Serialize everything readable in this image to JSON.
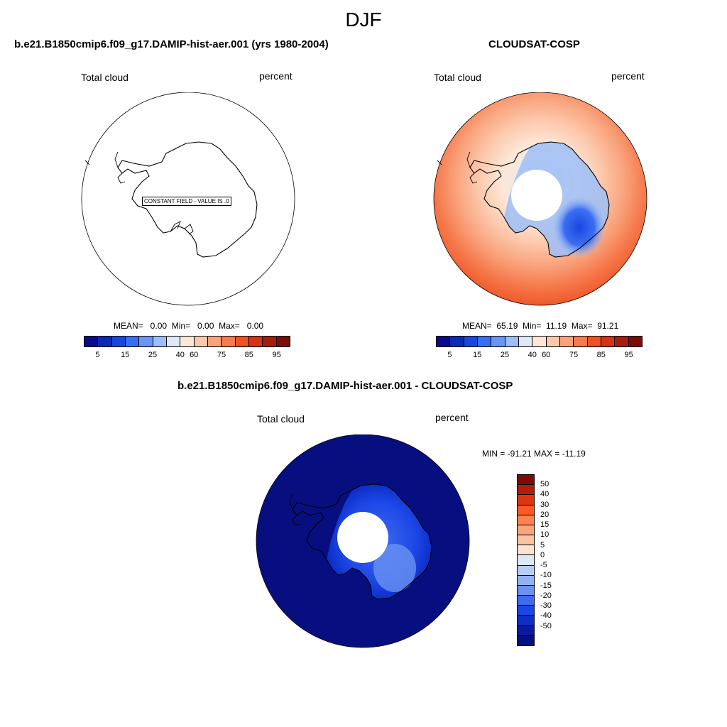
{
  "season": "DJF",
  "panels": {
    "model": {
      "title": "b.e21.B1850cmip6.f09_g17.DAMIP-hist-aer.001 (yrs 1980-2004)",
      "variable": "Total cloud",
      "units": "percent",
      "constant_message": "CONSTANT FIELD - VALUE IS .0",
      "stats": "MEAN=   0.00  Min=   0.00  Max=   0.00"
    },
    "obs": {
      "title": "CLOUDSAT-COSP",
      "variable": "Total cloud",
      "units": "percent",
      "stats": "MEAN=  65.19  Min=  11.19  Max=  91.21"
    },
    "diff": {
      "title": "b.e21.B1850cmip6.f09_g17.DAMIP-hist-aer.001 - CLOUDSAT-COSP",
      "variable": "Total cloud",
      "units": "percent",
      "range": "MIN = -91.21 MAX = -11.19"
    }
  },
  "colorbar_abs": {
    "colors": [
      "#0a0a8c",
      "#0d2ab4",
      "#1a46e0",
      "#3a6ef2",
      "#6996f5",
      "#9dbef7",
      "#dde9fa",
      "#fde7d7",
      "#fcc9ad",
      "#f9a37c",
      "#f57a4c",
      "#ee5223",
      "#d73211",
      "#a71d08",
      "#7e0b05"
    ],
    "ticks": [
      "5",
      "15",
      "25",
      "40",
      "60",
      "75",
      "85",
      "95"
    ]
  },
  "colorbar_diff": {
    "colors": [
      "#7e0b05",
      "#b51c08",
      "#e0340e",
      "#fb5a25",
      "#fb8550",
      "#fca57c",
      "#fcc3a2",
      "#fde3d0",
      "#dde9fa",
      "#b6cdf7",
      "#93b2f4",
      "#6a92f2",
      "#3e6cf0",
      "#1c47e6",
      "#0d2fc6",
      "#0a1b9e",
      "#070f80"
    ],
    "ticks": [
      "50",
      "40",
      "30",
      "20",
      "15",
      "10",
      "5",
      "0",
      "-5",
      "-10",
      "-15",
      "-20",
      "-30",
      "-40",
      "-50"
    ]
  }
}
